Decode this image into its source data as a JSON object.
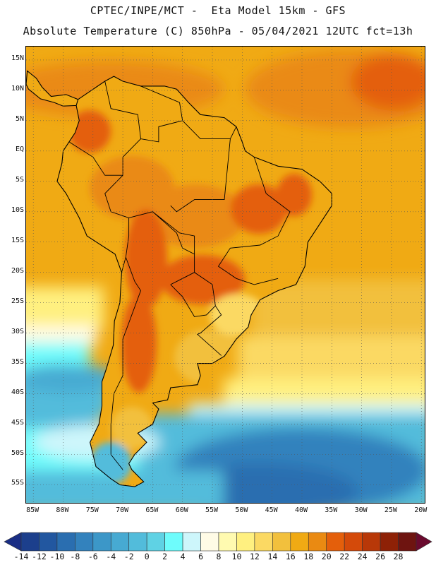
{
  "header": {
    "line1": "CPTEC/INPE/MCT -  Eta Model 15km - GFS",
    "line2": "Absolute Temperature (C) 850hPa - 05/04/2021 12UTC fct=13h"
  },
  "map": {
    "lat_labels": [
      "15N",
      "10N",
      "5N",
      "EQ",
      "5S",
      "10S",
      "15S",
      "20S",
      "25S",
      "30S",
      "35S",
      "40S",
      "45S",
      "50S",
      "55S"
    ],
    "lon_labels": [
      "85W",
      "80W",
      "75W",
      "70W",
      "65W",
      "60W",
      "55W",
      "50W",
      "45W",
      "40W",
      "35W",
      "30W",
      "25W",
      "20W"
    ]
  },
  "colorbar": {
    "labels": [
      "-14",
      "-12",
      "-10",
      "-8",
      "-6",
      "-4",
      "-2",
      "0",
      "2",
      "4",
      "6",
      "8",
      "10",
      "12",
      "14",
      "16",
      "18",
      "20",
      "22",
      "24",
      "26",
      "28"
    ],
    "colors": [
      "#1c3f8c",
      "#2257a0",
      "#2a6eb0",
      "#3382bd",
      "#3c97c8",
      "#47aad2",
      "#52bcdb",
      "#5fd2e4",
      "#6efcfc",
      "#cdf6fb",
      "#fffbe6",
      "#fffab0",
      "#fff080",
      "#fbd963",
      "#f2c03d",
      "#f0aa14",
      "#ea8a12",
      "#e45f0b",
      "#d44a0a",
      "#b83808",
      "#8e2106",
      "#6e1410"
    ],
    "cap_left": "#1a2e85",
    "cap_right": "#6a0a2e"
  }
}
